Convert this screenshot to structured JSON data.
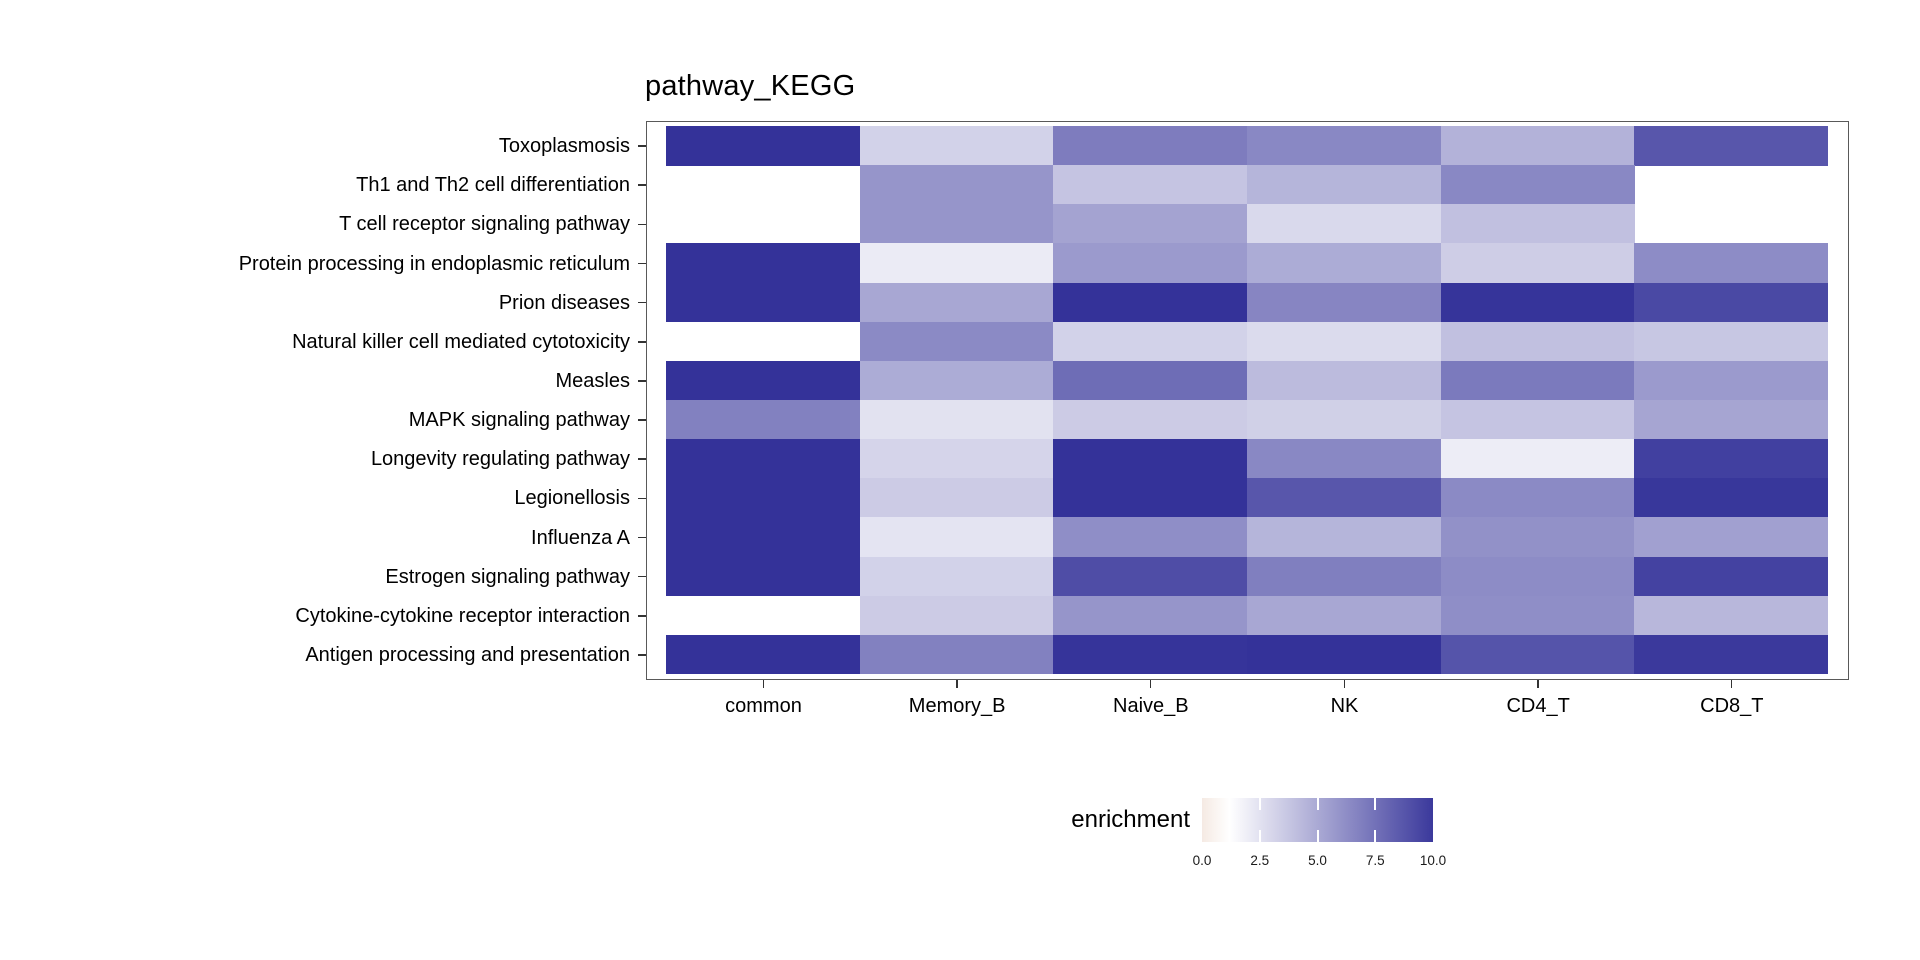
{
  "title": "pathway_KEGG",
  "legend": {
    "title": "enrichment",
    "tick_labels": [
      "0.0",
      "2.5",
      "5.0",
      "7.5",
      "10.0"
    ],
    "tick_values": [
      0.0,
      2.5,
      5.0,
      7.5,
      10.0
    ],
    "range": [
      0,
      10
    ],
    "color_low": "#F5EAE3",
    "color_mid": "#FFFFFF",
    "color_high": "#343299",
    "mid_at_value": 1.2,
    "high_at_value": 10.3
  },
  "chart_data": {
    "type": "heatmap",
    "title": "pathway_KEGG",
    "value_label": "enrichment",
    "legend_position": "bottom",
    "na_color": "#FFFFFF",
    "columns": [
      "common",
      "Memory_B",
      "Naive_B",
      "NK",
      "CD4_T",
      "CD8_T"
    ],
    "rows": [
      "Toxoplasmosis",
      "Th1 and Th2 cell differentiation",
      "T cell receptor signaling pathway",
      "Protein processing in endoplasmic reticulum",
      "Prion diseases",
      "Natural killer cell mediated cytotoxicity",
      "Measles",
      "MAPK signaling pathway",
      "Longevity regulating pathway",
      "Legionellosis",
      "Influenza A",
      "Estrogen signaling pathway",
      "Cytokine-cytokine receptor interaction",
      "Antigen processing and presentation"
    ],
    "values": [
      [
        10.3,
        3.2,
        7.0,
        6.5,
        4.6,
        8.7
      ],
      [
        null,
        5.9,
        3.8,
        4.5,
        6.5,
        null
      ],
      [
        null,
        5.9,
        5.3,
        2.9,
        4.0,
        null
      ],
      [
        10.3,
        2.1,
        5.7,
        4.9,
        3.4,
        6.3
      ],
      [
        10.3,
        5.1,
        10.4,
        6.6,
        10.2,
        9.3
      ],
      [
        null,
        6.4,
        3.2,
        2.8,
        4.0,
        3.7
      ],
      [
        10.3,
        4.9,
        7.7,
        4.2,
        7.1,
        5.7
      ],
      [
        6.8,
        2.5,
        3.5,
        3.3,
        3.8,
        5.2
      ],
      [
        10.3,
        3.1,
        10.4,
        6.5,
        2.0,
        9.7
      ],
      [
        10.3,
        3.5,
        10.4,
        8.7,
        6.4,
        10.1
      ],
      [
        10.3,
        2.4,
        6.2,
        4.5,
        6.1,
        5.4
      ],
      [
        10.3,
        3.2,
        9.1,
        6.9,
        6.3,
        9.6
      ],
      [
        null,
        3.5,
        5.9,
        5.1,
        6.2,
        4.4
      ],
      [
        10.5,
        6.8,
        10.2,
        10.3,
        8.8,
        10.0
      ]
    ]
  }
}
